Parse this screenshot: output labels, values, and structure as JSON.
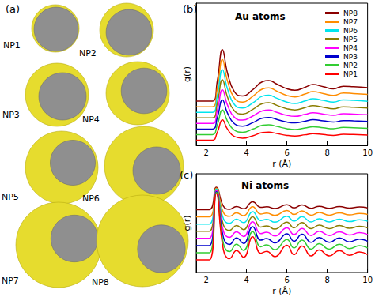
{
  "panel_a": {
    "label": "(a)",
    "particles": [
      "NP1",
      "NP2",
      "NP3",
      "NP4",
      "NP5",
      "NP6",
      "NP7",
      "NP8"
    ]
  },
  "chart_data": [
    {
      "type": "line",
      "title": "(b)",
      "annotations": [
        "Au atoms"
      ],
      "x_label": "r (Å)",
      "y_label": "g(r)",
      "x": [
        1.5,
        2.3,
        2.55,
        2.8,
        3.05,
        3.4,
        3.8,
        4.3,
        4.8,
        5.1,
        5.5,
        6.0,
        6.4,
        6.9,
        7.3,
        7.8,
        8.3,
        8.8,
        9.3,
        10
      ],
      "xlim": [
        1.5,
        10
      ],
      "xticks": [
        2,
        4,
        6,
        8,
        10
      ],
      "ylim": [
        0,
        14
      ],
      "tick_labels": "x",
      "legend": "upper right",
      "series": [
        {
          "name": "NP8",
          "color": "#8b0000",
          "values": [
            4.35,
            4.35,
            6.38,
            9.43,
            7.14,
            5.26,
            4.86,
            5.47,
            6.28,
            6.38,
            6.03,
            5.57,
            5.42,
            5.72,
            5.98,
            5.77,
            5.57,
            5.82,
            5.77,
            5.67
          ]
        },
        {
          "name": "NP7",
          "color": "#ff8c00",
          "values": [
            3.8,
            3.8,
            5.66,
            8.44,
            6.35,
            4.64,
            4.26,
            4.82,
            5.56,
            5.66,
            5.33,
            4.91,
            4.77,
            5.05,
            5.29,
            5.1,
            4.91,
            5.15,
            5.1,
            5.01
          ]
        },
        {
          "name": "NP6",
          "color": "#00e5ee",
          "values": [
            3.25,
            3.25,
            4.93,
            7.45,
            5.56,
            4.01,
            3.67,
            4.17,
            4.85,
            4.93,
            4.64,
            4.26,
            4.13,
            4.38,
            4.59,
            4.43,
            4.26,
            4.47,
            4.43,
            4.34
          ]
        },
        {
          "name": "NP5",
          "color": "#8b7d00",
          "values": [
            2.7,
            2.7,
            4.2,
            6.46,
            4.77,
            3.38,
            3.08,
            3.53,
            4.13,
            4.2,
            3.94,
            3.6,
            3.49,
            3.72,
            3.9,
            3.75,
            3.6,
            3.79,
            3.75,
            3.68
          ]
        },
        {
          "name": "NP4",
          "color": "#ff00ff",
          "values": [
            2.15,
            2.15,
            3.48,
            5.47,
            3.98,
            2.75,
            2.48,
            2.88,
            3.41,
            3.48,
            3.25,
            2.95,
            2.85,
            3.05,
            3.21,
            3.08,
            2.95,
            3.11,
            3.08,
            3.01
          ]
        },
        {
          "name": "NP3",
          "color": "#0000cd",
          "values": [
            1.6,
            1.6,
            2.75,
            4.48,
            3.18,
            2.12,
            1.89,
            2.23,
            2.69,
            2.75,
            2.55,
            2.29,
            2.21,
            2.38,
            2.52,
            2.41,
            2.29,
            2.44,
            2.41,
            2.35
          ]
        },
        {
          "name": "NP2",
          "color": "#32cd32",
          "values": [
            1.05,
            1.05,
            2.03,
            3.49,
            2.39,
            1.49,
            1.29,
            1.59,
            1.98,
            2.03,
            1.86,
            1.64,
            1.56,
            1.71,
            1.83,
            1.73,
            1.64,
            1.76,
            1.73,
            1.68
          ]
        },
        {
          "name": "NP1",
          "color": "#ff0000",
          "values": [
            0.5,
            0.5,
            1.3,
            2.5,
            1.6,
            0.86,
            0.7,
            0.94,
            1.26,
            1.3,
            1.16,
            0.98,
            0.92,
            1.04,
            1.14,
            1.06,
            0.98,
            1.08,
            1.06,
            1.02
          ]
        }
      ]
    },
    {
      "type": "line",
      "title": "(c)",
      "annotations": [
        "Ni atoms"
      ],
      "x_label": "r (Å)",
      "y_label": "g(r)",
      "x": [
        1.5,
        2.15,
        2.5,
        2.85,
        3.15,
        3.5,
        3.85,
        4.3,
        4.7,
        5.0,
        5.4,
        6.0,
        6.35,
        6.75,
        7.2,
        7.6,
        8.1,
        8.6,
        9.1,
        9.6,
        10
      ],
      "xlim": [
        1.5,
        10
      ],
      "xticks": [
        2,
        4,
        6,
        8,
        10
      ],
      "ylim": [
        0,
        11
      ],
      "tick_labels": "x",
      "series": [
        {
          "color": "#8b0000",
          "values": [
            7,
            7,
            9.5,
            7.38,
            7.05,
            7.35,
            7.1,
            7.88,
            7.25,
            7.33,
            7.13,
            7.55,
            7.2,
            7.53,
            7.15,
            7.38,
            7.15,
            7.35,
            7.18,
            7.3,
            7.2
          ]
        },
        {
          "color": "#ff8c00",
          "values": [
            6.2,
            6.2,
            9.4,
            6.68,
            6.26,
            6.65,
            6.33,
            7.32,
            6.52,
            6.62,
            6.36,
            6.9,
            6.46,
            6.87,
            6.39,
            6.68,
            6.39,
            6.65,
            6.42,
            6.58,
            6.46
          ]
        },
        {
          "color": "#00e5ee",
          "values": [
            5.4,
            5.4,
            9.3,
            5.99,
            5.48,
            5.95,
            5.56,
            6.77,
            5.79,
            5.91,
            5.6,
            6.26,
            5.71,
            6.22,
            5.63,
            5.99,
            5.63,
            5.95,
            5.67,
            5.87,
            5.71
          ]
        },
        {
          "color": "#8b7d00",
          "values": [
            4.6,
            4.6,
            9.2,
            5.29,
            4.69,
            5.24,
            4.78,
            6.21,
            5.06,
            5.2,
            4.83,
            5.61,
            4.97,
            5.57,
            4.88,
            5.29,
            4.88,
            5.24,
            4.92,
            5.15,
            4.97
          ]
        },
        {
          "color": "#ff00ff",
          "values": [
            3.8,
            3.8,
            9.1,
            4.6,
            3.91,
            4.54,
            4.01,
            5.66,
            4.33,
            4.49,
            4.07,
            4.97,
            4.22,
            4.91,
            4.12,
            4.6,
            4.12,
            4.54,
            4.17,
            4.44,
            4.22
          ]
        },
        {
          "color": "#0000cd",
          "values": [
            3,
            3,
            9,
            3.9,
            3.12,
            3.84,
            3.24,
            5.1,
            3.6,
            3.78,
            3.3,
            4.32,
            3.48,
            4.26,
            3.36,
            3.9,
            3.36,
            3.84,
            3.42,
            3.72,
            3.48
          ]
        },
        {
          "color": "#32cd32",
          "values": [
            2.2,
            2.2,
            8.9,
            3.21,
            2.33,
            3.14,
            2.47,
            4.55,
            2.87,
            3.07,
            2.54,
            3.67,
            2.74,
            3.61,
            2.6,
            3.21,
            2.6,
            3.14,
            2.67,
            3.0,
            2.74
          ]
        },
        {
          "color": "#ff0000",
          "values": [
            1.4,
            1.4,
            8.8,
            2.51,
            1.55,
            2.44,
            1.7,
            3.99,
            2.14,
            2.36,
            1.77,
            3.03,
            1.99,
            2.95,
            1.84,
            2.51,
            1.84,
            2.44,
            1.92,
            2.29,
            1.99
          ]
        }
      ]
    }
  ]
}
